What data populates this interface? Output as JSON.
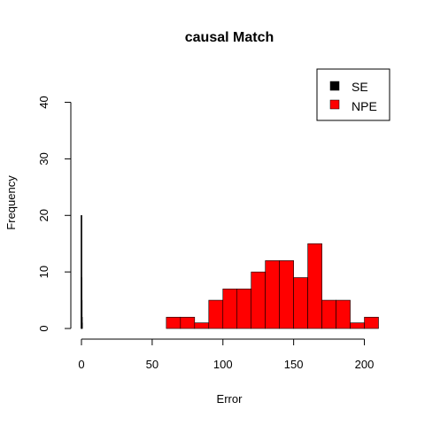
{
  "chart_data": {
    "type": "bar",
    "title": "causal Match",
    "xlabel": "Error",
    "ylabel": "Frequency",
    "xlim": [
      0,
      210
    ],
    "ylim": [
      0,
      44
    ],
    "x_ticks": [
      0,
      50,
      100,
      150,
      200
    ],
    "y_ticks": [
      0,
      10,
      20,
      30,
      40
    ],
    "legend": {
      "position": "top-right",
      "entries": [
        "SE",
        "NPE"
      ]
    },
    "series": [
      {
        "name": "SE",
        "color": "#000000",
        "bins": [
          {
            "x0": 0,
            "x1": 0.1,
            "count": 20
          },
          {
            "x0": 0.1,
            "x1": 0.2,
            "count": 9
          },
          {
            "x0": 0.2,
            "x1": 0.3,
            "count": 5
          },
          {
            "x0": 0.3,
            "x1": 0.4,
            "count": 2
          },
          {
            "x0": 0.4,
            "x1": 0.5,
            "count": 1
          }
        ]
      },
      {
        "name": "NPE",
        "color": "#ff0000",
        "bins": [
          {
            "x0": 60,
            "x1": 70,
            "count": 2
          },
          {
            "x0": 70,
            "x1": 80,
            "count": 2
          },
          {
            "x0": 80,
            "x1": 90,
            "count": 1
          },
          {
            "x0": 90,
            "x1": 100,
            "count": 5
          },
          {
            "x0": 100,
            "x1": 110,
            "count": 7
          },
          {
            "x0": 110,
            "x1": 120,
            "count": 7
          },
          {
            "x0": 120,
            "x1": 130,
            "count": 10
          },
          {
            "x0": 130,
            "x1": 140,
            "count": 12
          },
          {
            "x0": 140,
            "x1": 150,
            "count": 12
          },
          {
            "x0": 150,
            "x1": 160,
            "count": 9
          },
          {
            "x0": 160,
            "x1": 170,
            "count": 15
          },
          {
            "x0": 170,
            "x1": 180,
            "count": 5
          },
          {
            "x0": 180,
            "x1": 190,
            "count": 5
          },
          {
            "x0": 190,
            "x1": 200,
            "count": 1
          },
          {
            "x0": 200,
            "x1": 210,
            "count": 2
          }
        ]
      }
    ]
  }
}
